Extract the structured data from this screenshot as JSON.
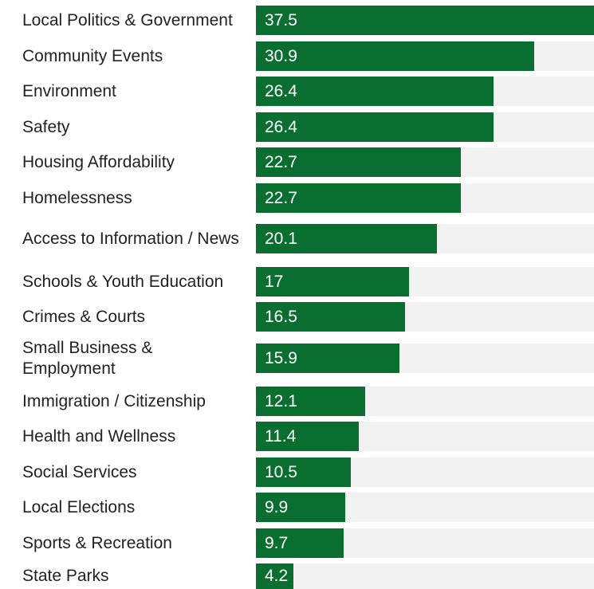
{
  "colors": {
    "bar": "#0a6e31",
    "track": "#f2f2f2",
    "label": "#222222",
    "value": "#ffffff"
  },
  "chart_data": {
    "type": "bar",
    "orientation": "horizontal",
    "grid": false,
    "legend": "none",
    "xlim": [
      0,
      37.5
    ],
    "categories": [
      "Local Politics & Government",
      "Community Events",
      "Environment",
      "Safety",
      "Housing Affordability",
      "Homelessness",
      "Access to Information / News",
      "Schools & Youth Education",
      "Crimes & Courts",
      "Small Business & Employment",
      "Immigration / Citizenship",
      "Health and Wellness",
      "Social Services",
      "Local Elections",
      "Sports & Recreation",
      "State Parks"
    ],
    "values": [
      37.5,
      30.9,
      26.4,
      26.4,
      22.7,
      22.7,
      20.1,
      17,
      16.5,
      15.9,
      12.1,
      11.4,
      10.5,
      9.9,
      9.7,
      4.2
    ],
    "value_labels": [
      "37.5",
      "30.9",
      "26.4",
      "26.4",
      "22.7",
      "22.7",
      "20.1",
      "17",
      "16.5",
      "15.9",
      "12.1",
      "11.4",
      "10.5",
      "9.9",
      "9.7",
      "4.2"
    ]
  }
}
